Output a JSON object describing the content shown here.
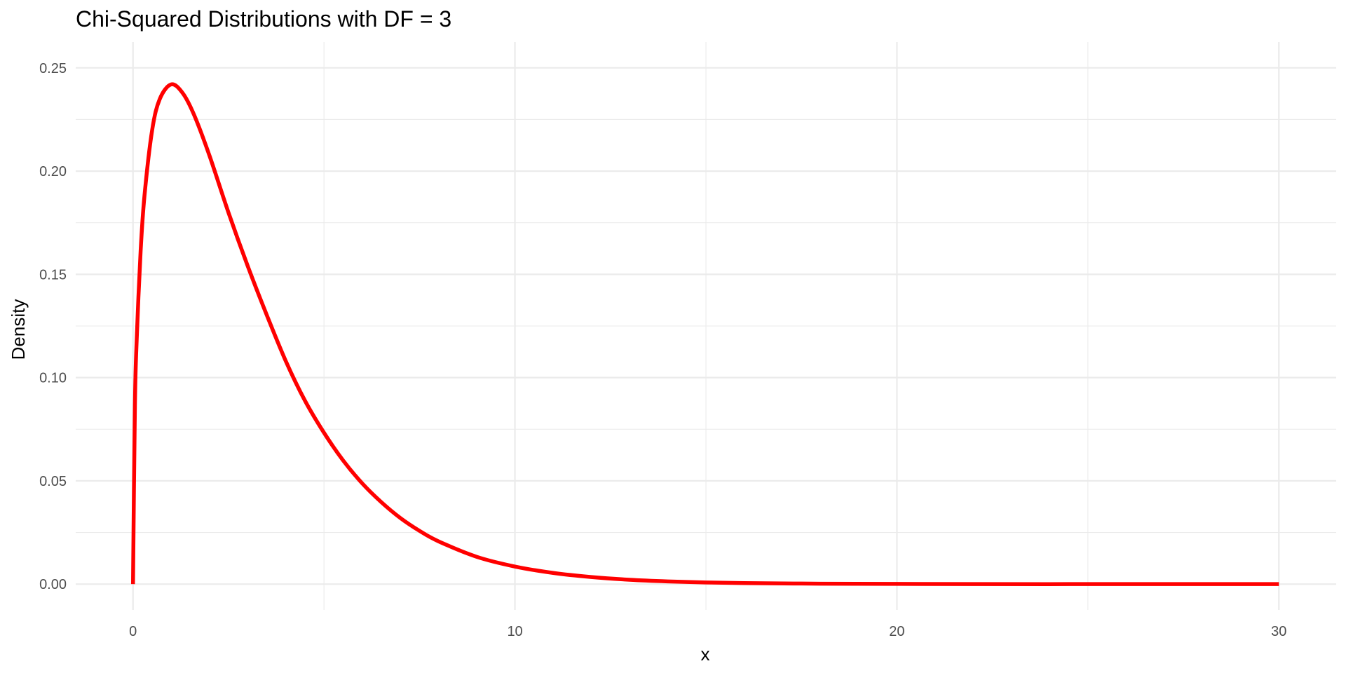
{
  "chart_data": {
    "type": "line",
    "title": "Chi-Squared Distributions with DF = 3",
    "xlabel": "x",
    "ylabel": "Density",
    "xlim": [
      -1.5,
      31.5
    ],
    "ylim": [
      -0.0125,
      0.2625
    ],
    "x_ticks": [
      0,
      10,
      20,
      30
    ],
    "x_tick_labels": [
      "0",
      "10",
      "20",
      "30"
    ],
    "x_minor_ticks": [
      5,
      15,
      25
    ],
    "y_ticks": [
      0.0,
      0.05,
      0.1,
      0.15,
      0.2,
      0.25
    ],
    "y_tick_labels": [
      "0.00",
      "0.05",
      "0.10",
      "0.15",
      "0.20",
      "0.25"
    ],
    "y_minor_ticks": [
      0.025,
      0.075,
      0.125,
      0.175,
      0.225
    ],
    "grid": true,
    "legend": "none",
    "series": [
      {
        "color": "#ff0000",
        "x": [
          0,
          0.05,
          0.1,
          0.2,
          0.3,
          0.5,
          0.7,
          1.0,
          1.3,
          1.6,
          2.0,
          2.5,
          3.0,
          3.5,
          4.0,
          4.5,
          5.0,
          5.5,
          6.0,
          6.5,
          7.0,
          7.5,
          8.0,
          9.0,
          10.0,
          11.0,
          12.0,
          13.0,
          14.0,
          15.0,
          16.0,
          18.0,
          20.0,
          22.0,
          25.0,
          28.0,
          30.0
        ],
        "y": [
          0.0,
          0.0868,
          0.12,
          0.1614,
          0.188,
          0.2197,
          0.2349,
          0.242,
          0.2378,
          0.2272,
          0.2076,
          0.1799,
          0.1542,
          0.1304,
          0.108,
          0.0889,
          0.0733,
          0.0599,
          0.0488,
          0.0397,
          0.032,
          0.0258,
          0.0207,
          0.0132,
          0.0085,
          0.0054,
          0.0034,
          0.0021,
          0.0013,
          0.0008,
          0.0005,
          0.0002,
          0.0001,
          0.0,
          0.0,
          0.0,
          0.0
        ]
      }
    ]
  }
}
